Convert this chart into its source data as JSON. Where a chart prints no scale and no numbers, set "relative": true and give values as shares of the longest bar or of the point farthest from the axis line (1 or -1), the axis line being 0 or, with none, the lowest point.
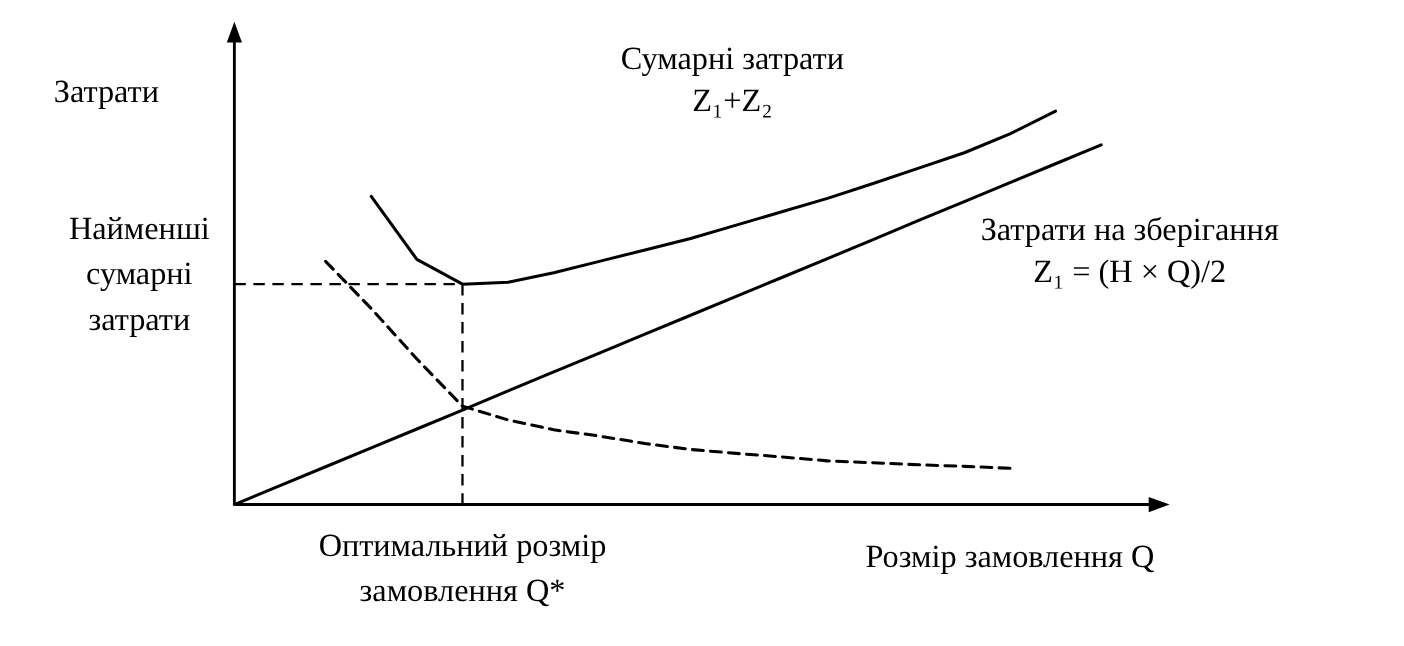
{
  "chart_data": {
    "type": "line",
    "relative": true,
    "xlabel": "Розмір замовлення Q",
    "ylabel": "Затрати",
    "categories": [
      null,
      null,
      null,
      null,
      null,
      null,
      null,
      null,
      null,
      null,
      null,
      null,
      null,
      null,
      null,
      null,
      null,
      null,
      null,
      null,
      null
    ],
    "annotations": [
      "Оптимальний розмір\nзамовлення Q*"
    ],
    "series": [
      {
        "name": "Сумарні затрати\nZ₁+Z₂",
        "color": "#000000",
        "line_style": "solid",
        "values": [
          null,
          null,
          null,
          0.783,
          0.623,
          0.56,
          0.565,
          0.589,
          0.618,
          0.647,
          0.676,
          0.71,
          0.744,
          0.778,
          0.816,
          0.855,
          0.894,
          0.942,
          1.0,
          null,
          null
        ]
      },
      {
        "name": "Затрати на зберігання\nZ₁ = (H × Q)/2",
        "color": "#000000",
        "line_style": "solid",
        "values": [
          0,
          0.048,
          0.096,
          0.144,
          0.192,
          0.24,
          0.289,
          0.337,
          0.385,
          0.433,
          0.481,
          0.529,
          0.577,
          0.625,
          0.673,
          0.722,
          0.77,
          0.818,
          0.866,
          0.914,
          null
        ]
      },
      {
        "color": "#000000",
        "line_style": "dashed",
        "values": [
          null,
          null,
          0.618,
          0.498,
          0.37,
          0.25,
          0.215,
          0.19,
          0.174,
          0.155,
          0.14,
          0.13,
          0.121,
          0.111,
          0.106,
          0.101,
          0.097,
          0.092,
          null,
          null,
          null
        ]
      }
    ],
    "ref_lines": [
      {
        "axis": "y",
        "value": 0.56,
        "label": "Найменші\nсумарні\nзатрати",
        "line_style": "dashed",
        "color": "#000000"
      }
    ]
  }
}
